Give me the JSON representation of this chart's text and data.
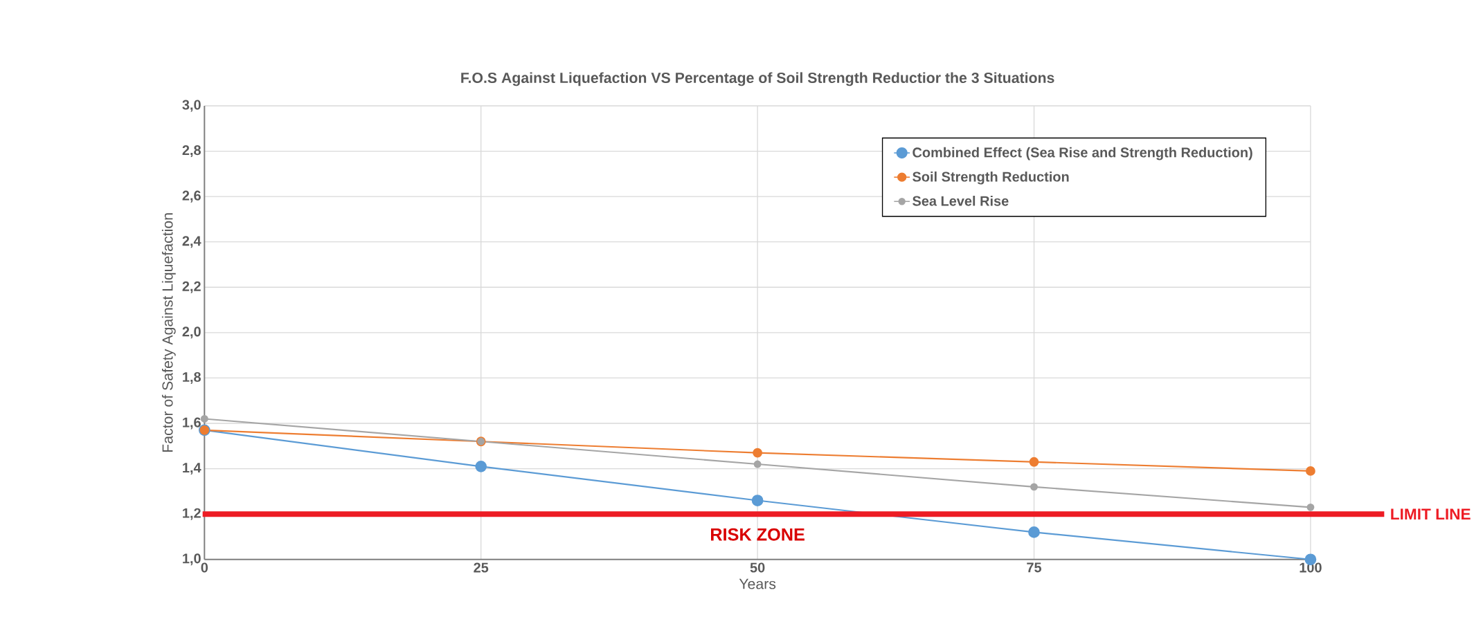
{
  "chart_data": {
    "type": "line",
    "title": "F.O.S Against Liquefaction VS Percentage of Soil Strength Reductior the 3 Situations",
    "xlabel": "Years",
    "ylabel": "Factor of Safety Against Liquefaction",
    "x": [
      0,
      25,
      50,
      75,
      100
    ],
    "series": [
      {
        "name": "Combined Effect (Sea Rise and Strength Reduction)",
        "color": "#5b9bd5",
        "values": [
          1.57,
          1.41,
          1.26,
          1.12,
          1.0
        ]
      },
      {
        "name": "Soil Strength Reduction",
        "color": "#ed7d31",
        "values": [
          1.57,
          1.52,
          1.47,
          1.43,
          1.39
        ]
      },
      {
        "name": "Sea Level Rise",
        "color": "#a5a5a5",
        "values": [
          1.62,
          1.52,
          1.42,
          1.32,
          1.23
        ]
      }
    ],
    "xlim": [
      0,
      100
    ],
    "ylim": [
      1.0,
      3.0
    ],
    "xticks": [
      0,
      25,
      50,
      75,
      100
    ],
    "yticks": [
      {
        "value": 1.0,
        "label": "1,0"
      },
      {
        "value": 1.2,
        "label": "1,2"
      },
      {
        "value": 1.4,
        "label": "1,4"
      },
      {
        "value": 1.6,
        "label": "1,6"
      },
      {
        "value": 1.8,
        "label": "1,8"
      },
      {
        "value": 2.0,
        "label": "2,0"
      },
      {
        "value": 2.2,
        "label": "2,2"
      },
      {
        "value": 2.4,
        "label": "2,4"
      },
      {
        "value": 2.6,
        "label": "2,6"
      },
      {
        "value": 2.8,
        "label": "2,8"
      },
      {
        "value": 3.0,
        "label": "3,0"
      }
    ],
    "ref_lines": [
      {
        "axis": "y",
        "value": 1.2,
        "label": "LIMIT LINE",
        "color": "#ed1c24"
      }
    ],
    "annotations": [
      "RISK ZONE"
    ],
    "grid": true,
    "legend": "top right",
    "marker": "circle",
    "line_style": "solid"
  }
}
